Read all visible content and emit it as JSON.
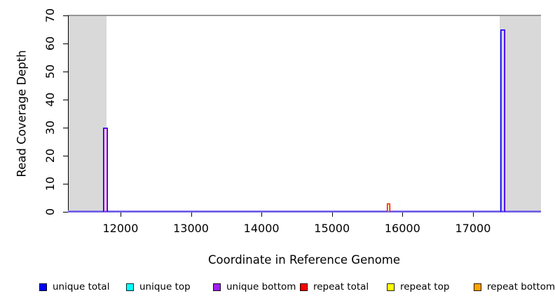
{
  "chart_data": {
    "type": "line",
    "title": "",
    "xlabel": "Coordinate in Reference Genome",
    "ylabel": "Read Coverage Depth",
    "xlim": [
      11255,
      17965
    ],
    "ylim": [
      0,
      70
    ],
    "xticks": [
      12000,
      13000,
      14000,
      15000,
      16000,
      17000
    ],
    "yticks": [
      0,
      10,
      20,
      30,
      40,
      50,
      60,
      70
    ],
    "grid": false,
    "legend_position": "bottom",
    "colors": {
      "masked_region": "#d9d9d9",
      "frame_top_line": "#969696",
      "baseline_apparent": "#7c64ea"
    },
    "shaded_regions": [
      {
        "name": "masked-left",
        "x0": 11255,
        "x1": 11800
      },
      {
        "name": "masked-right",
        "x0": 17380,
        "x1": 17965
      }
    ],
    "baseline_value": 0,
    "series": [
      {
        "name": "unique total",
        "color": "#0000ff",
        "spikes": [
          {
            "x0": 11750,
            "x1": 11820,
            "height": 30
          },
          {
            "x0": 17385,
            "x1": 17455,
            "height": 65
          }
        ]
      },
      {
        "name": "unique top",
        "color": "#00ffff",
        "spikes": []
      },
      {
        "name": "unique bottom",
        "color": "#a020f0",
        "spikes": [
          {
            "x0": 11750,
            "x1": 11820,
            "height": 30
          },
          {
            "x0": 17385,
            "x1": 17455,
            "height": 65
          }
        ]
      },
      {
        "name": "repeat total",
        "color": "#ff0000",
        "spikes": [
          {
            "x0": 15780,
            "x1": 15825,
            "height": 3
          }
        ]
      },
      {
        "name": "repeat top",
        "color": "#ffff00",
        "spikes": []
      },
      {
        "name": "repeat bottom",
        "color": "#ffa500",
        "spikes": [
          {
            "x0": 15780,
            "x1": 15825,
            "height": 3
          }
        ]
      }
    ],
    "legend": [
      {
        "label": "unique total",
        "color": "#0000ff"
      },
      {
        "label": "unique top",
        "color": "#00ffff"
      },
      {
        "label": "unique bottom",
        "color": "#a020f0"
      },
      {
        "label": "repeat total",
        "color": "#ff0000"
      },
      {
        "label": "repeat top",
        "color": "#ffff00"
      },
      {
        "label": "repeat bottom",
        "color": "#ffa500"
      }
    ]
  }
}
